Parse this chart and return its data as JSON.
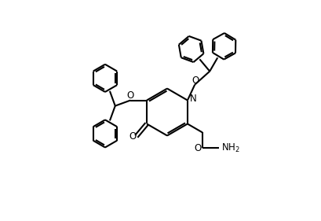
{
  "bg_color": "#ffffff",
  "line_color": "#000000",
  "line_width": 1.5,
  "fig_width": 4.1,
  "fig_height": 2.81,
  "dpi": 100,
  "xlim": [
    0,
    10
  ],
  "ylim": [
    0,
    7
  ]
}
